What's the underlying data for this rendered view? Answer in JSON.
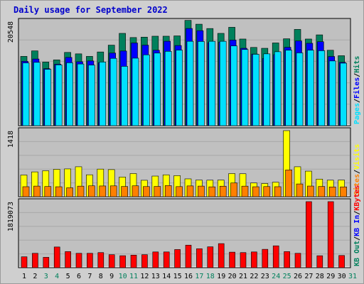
{
  "title": "Daily usage for September 2022",
  "colors": {
    "hits": "#00805c",
    "files": "#0000ff",
    "pages": "#00e0ff",
    "visits": "#ffff00",
    "sites": "#ff8000",
    "kbytes": "#ff0000",
    "weekend_day": "#00805c",
    "weekday_day": "#000000",
    "plot_bg": "#c0c0c0",
    "frame_bg": "#cfcfcf"
  },
  "chart_data": [
    {
      "type": "bar",
      "name": "hits-files-pages",
      "ymax_label": "20548",
      "ymax": 20548,
      "legend": [
        {
          "text": "Hits",
          "color_key": "hits"
        },
        {
          "text": "/",
          "color_key": null
        },
        {
          "text": "Files",
          "color_key": "files"
        },
        {
          "text": "/",
          "color_key": null
        },
        {
          "text": "Pages",
          "color_key": "pages"
        }
      ],
      "categories": [
        "1",
        "2",
        "3",
        "4",
        "5",
        "6",
        "7",
        "8",
        "9",
        "10",
        "11",
        "12",
        "13",
        "14",
        "15",
        "16",
        "17",
        "18",
        "19",
        "20",
        "21",
        "22",
        "23",
        "24",
        "25",
        "26",
        "27",
        "28",
        "29",
        "30"
      ],
      "series": [
        {
          "name": "Hits",
          "color_key": "hits",
          "values": [
            13460,
            14530,
            12360,
            12780,
            14230,
            13950,
            13460,
            14320,
            15640,
            17930,
            17120,
            17200,
            17380,
            17380,
            17440,
            20460,
            19710,
            18870,
            17930,
            19110,
            16830,
            15200,
            15030,
            16070,
            16880,
            18700,
            16830,
            17640,
            14650,
            13590
          ]
        },
        {
          "name": "Files",
          "color_key": "files",
          "values": [
            12500,
            12950,
            11070,
            11950,
            13260,
            12420,
            12570,
            12210,
            14100,
            14500,
            16060,
            15640,
            14650,
            16400,
            15570,
            18880,
            18450,
            16120,
            16230,
            16620,
            15030,
            13910,
            13050,
            13800,
            15220,
            16460,
            16000,
            16310,
            13440,
            12300
          ]
        },
        {
          "name": "Pages",
          "color_key": "pages",
          "values": [
            12190,
            12300,
            10940,
            11810,
            12220,
            11980,
            11770,
            12360,
            13070,
            11520,
            13110,
            13760,
            14100,
            14440,
            14680,
            16390,
            16360,
            16390,
            16390,
            15490,
            14790,
            13870,
            13950,
            14360,
            14660,
            14140,
            14660,
            14560,
            12570,
            12140
          ]
        }
      ]
    },
    {
      "type": "bar",
      "name": "visits-sites",
      "ymax_label": "1418",
      "ymax": 1418,
      "legend": [
        {
          "text": "Visits",
          "color_key": "visits"
        },
        {
          "text": "/",
          "color_key": null
        },
        {
          "text": "Sites",
          "color_key": "sites"
        }
      ],
      "categories": [
        "1",
        "2",
        "3",
        "4",
        "5",
        "6",
        "7",
        "8",
        "9",
        "10",
        "11",
        "12",
        "13",
        "14",
        "15",
        "16",
        "17",
        "18",
        "19",
        "20",
        "21",
        "22",
        "23",
        "24",
        "25",
        "26",
        "27",
        "28",
        "29",
        "30"
      ],
      "series": [
        {
          "name": "Visits",
          "color_key": "visits",
          "values": [
            465,
            532,
            557,
            587,
            596,
            642,
            470,
            592,
            581,
            422,
            496,
            352,
            442,
            469,
            452,
            382,
            357,
            354,
            357,
            496,
            492,
            295,
            282,
            310,
            1418,
            642,
            548,
            377,
            354,
            357
          ]
        },
        {
          "name": "Sites",
          "color_key": "sites",
          "values": [
            214,
            227,
            218,
            213,
            191,
            226,
            233,
            230,
            232,
            219,
            233,
            217,
            220,
            238,
            216,
            231,
            227,
            211,
            225,
            295,
            226,
            213,
            217,
            214,
            574,
            273,
            228,
            219,
            209,
            210
          ]
        }
      ]
    },
    {
      "type": "bar",
      "name": "kbytes",
      "ymax_label": "1819073",
      "ymax": 1819073,
      "legend": [
        {
          "text": "KBytes",
          "color_key": "kbytes"
        },
        {
          "text": "/",
          "color_key": null
        },
        {
          "text": "KB In",
          "color_key": "files"
        },
        {
          "text": "/",
          "color_key": null
        },
        {
          "text": "KB Out",
          "color_key": "hits"
        }
      ],
      "categories": [
        "1",
        "2",
        "3",
        "4",
        "5",
        "6",
        "7",
        "8",
        "9",
        "10",
        "11",
        "12",
        "13",
        "14",
        "15",
        "16",
        "17",
        "18",
        "19",
        "20",
        "21",
        "22",
        "23",
        "24",
        "25",
        "26",
        "27",
        "28",
        "29",
        "30"
      ],
      "series": [
        {
          "name": "KBytes",
          "color_key": "kbytes",
          "values": [
            300000,
            396000,
            286000,
            570000,
            443000,
            396000,
            396000,
            416000,
            358000,
            330000,
            346000,
            358000,
            434000,
            434000,
            500000,
            621000,
            522000,
            575000,
            663000,
            428000,
            416000,
            434000,
            506000,
            602000,
            443000,
            396000,
            1819073,
            329000,
            1819073,
            336000
          ]
        }
      ]
    }
  ],
  "x_axis": {
    "days": [
      {
        "label": "1",
        "weekend": false
      },
      {
        "label": "2",
        "weekend": false
      },
      {
        "label": "3",
        "weekend": true
      },
      {
        "label": "4",
        "weekend": true
      },
      {
        "label": "5",
        "weekend": false
      },
      {
        "label": "6",
        "weekend": false
      },
      {
        "label": "7",
        "weekend": false
      },
      {
        "label": "8",
        "weekend": false
      },
      {
        "label": "9",
        "weekend": false
      },
      {
        "label": "10",
        "weekend": true
      },
      {
        "label": "11",
        "weekend": true
      },
      {
        "label": "12",
        "weekend": false
      },
      {
        "label": "13",
        "weekend": false
      },
      {
        "label": "14",
        "weekend": false
      },
      {
        "label": "15",
        "weekend": false
      },
      {
        "label": "16",
        "weekend": false
      },
      {
        "label": "17",
        "weekend": true
      },
      {
        "label": "18",
        "weekend": true
      },
      {
        "label": "19",
        "weekend": false
      },
      {
        "label": "20",
        "weekend": false
      },
      {
        "label": "21",
        "weekend": false
      },
      {
        "label": "22",
        "weekend": false
      },
      {
        "label": "23",
        "weekend": false
      },
      {
        "label": "24",
        "weekend": true
      },
      {
        "label": "25",
        "weekend": true
      },
      {
        "label": "26",
        "weekend": false
      },
      {
        "label": "27",
        "weekend": false
      },
      {
        "label": "28",
        "weekend": false
      },
      {
        "label": "29",
        "weekend": false
      },
      {
        "label": "30",
        "weekend": false
      },
      {
        "label": "31",
        "weekend": true
      }
    ]
  }
}
